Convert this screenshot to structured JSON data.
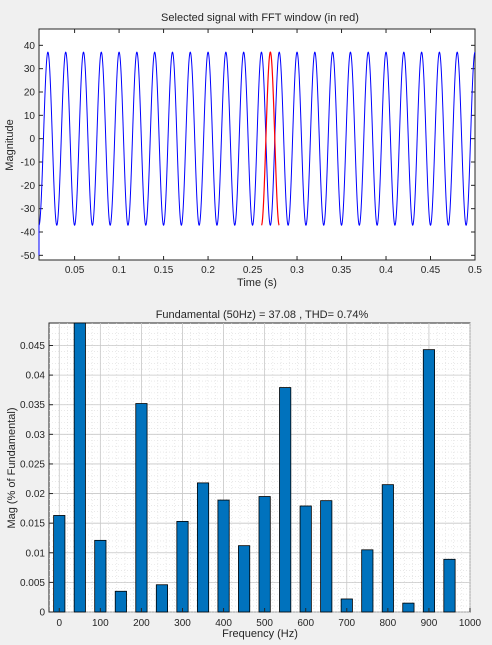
{
  "chart_data": [
    {
      "type": "line",
      "title": "Selected signal with FFT window (in red)",
      "xlabel": "Time (s)",
      "ylabel": "Magnitude",
      "xlim": [
        0.01,
        0.5
      ],
      "ylim": [
        -52,
        47
      ],
      "xticks": [
        0.05,
        0.1,
        0.15,
        0.2,
        0.25,
        0.3,
        0.35,
        0.4,
        0.45,
        0.5
      ],
      "xtick_labels": [
        "0.05",
        "0.1",
        "0.15",
        "0.2",
        "0.25",
        "0.3",
        "0.35",
        "0.4",
        "0.45",
        "0.5"
      ],
      "yticks": [
        -50,
        -40,
        -30,
        -20,
        -10,
        0,
        10,
        20,
        30,
        40
      ],
      "ytick_labels": [
        "-50",
        "-40",
        "-30",
        "-20",
        "-10",
        "0",
        "10",
        "20",
        "30",
        "40"
      ],
      "grid": false,
      "series": [
        {
          "kind": "sine",
          "frequency_hz": 50,
          "amplitude": 37.08,
          "start": 0.01,
          "end": 0.5,
          "initial_value": -50,
          "color": "#0000ff"
        },
        {
          "kind": "sine-window",
          "frequency_hz": 50,
          "amplitude": 37.08,
          "start": 0.26,
          "end": 0.28,
          "color": "#ff0000"
        }
      ]
    },
    {
      "type": "bar",
      "title": "Fundamental (50Hz) = 37.08 , THD= 0.74%",
      "xlabel": "Frequency (Hz)",
      "ylabel": "Mag (% of Fundamental)",
      "xlim": [
        -25,
        1000
      ],
      "ylim": [
        0,
        0.0488
      ],
      "xticks": [
        0,
        100,
        200,
        300,
        400,
        500,
        600,
        700,
        800,
        900,
        1000
      ],
      "xtick_labels": [
        "0",
        "100",
        "200",
        "300",
        "400",
        "500",
        "600",
        "700",
        "800",
        "900",
        "1000"
      ],
      "yticks": [
        0,
        0.005,
        0.01,
        0.015,
        0.02,
        0.025,
        0.03,
        0.035,
        0.04,
        0.045
      ],
      "ytick_labels": [
        "0",
        "0.005",
        "0.01",
        "0.015",
        "0.02",
        "0.025",
        "0.03",
        "0.035",
        "0.04",
        "0.045"
      ],
      "grid": true,
      "minor_grid": true,
      "bar_color": "#0072bd",
      "x": [
        0,
        50,
        100,
        150,
        200,
        250,
        300,
        350,
        400,
        450,
        500,
        550,
        600,
        650,
        700,
        750,
        800,
        850,
        900,
        950
      ],
      "values": [
        0.0163,
        0.049,
        0.0121,
        0.0035,
        0.0352,
        0.0046,
        0.0153,
        0.0218,
        0.0189,
        0.0112,
        0.0195,
        0.0379,
        0.0179,
        0.0188,
        0.0022,
        0.0105,
        0.0215,
        0.0015,
        0.0443,
        0.0089
      ]
    }
  ]
}
